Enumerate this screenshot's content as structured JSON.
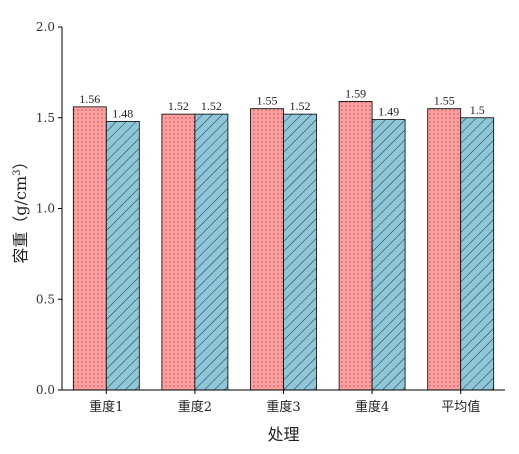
{
  "chart_data": {
    "type": "bar",
    "categories": [
      "重度1",
      "重度2",
      "重度3",
      "重度4",
      "平均值"
    ],
    "series": [
      {
        "values": [
          1.56,
          1.52,
          1.55,
          1.59,
          1.55
        ],
        "labels": [
          "1.56",
          "1.52",
          "1.55",
          "1.59",
          "1.55"
        ],
        "color": "#ff9ea0",
        "pattern": "dots"
      },
      {
        "values": [
          1.48,
          1.52,
          1.52,
          1.49,
          1.5
        ],
        "labels": [
          "1.48",
          "1.52",
          "1.52",
          "1.49",
          "1.5"
        ],
        "color": "#8fc6d8",
        "pattern": "diagonal-hatch"
      }
    ],
    "xlabel": "处理",
    "ylabel": "容重（g/cm",
    "ylabel_sup": "3",
    "ylabel_close": "）",
    "ylim": [
      0,
      2.0
    ],
    "yticks": [
      "0.0",
      "0.5",
      "1.0",
      "1.5",
      "2.0"
    ],
    "ytick_values": [
      0,
      0.5,
      1.0,
      1.5,
      2.0
    ],
    "grid": false,
    "legend": false
  }
}
